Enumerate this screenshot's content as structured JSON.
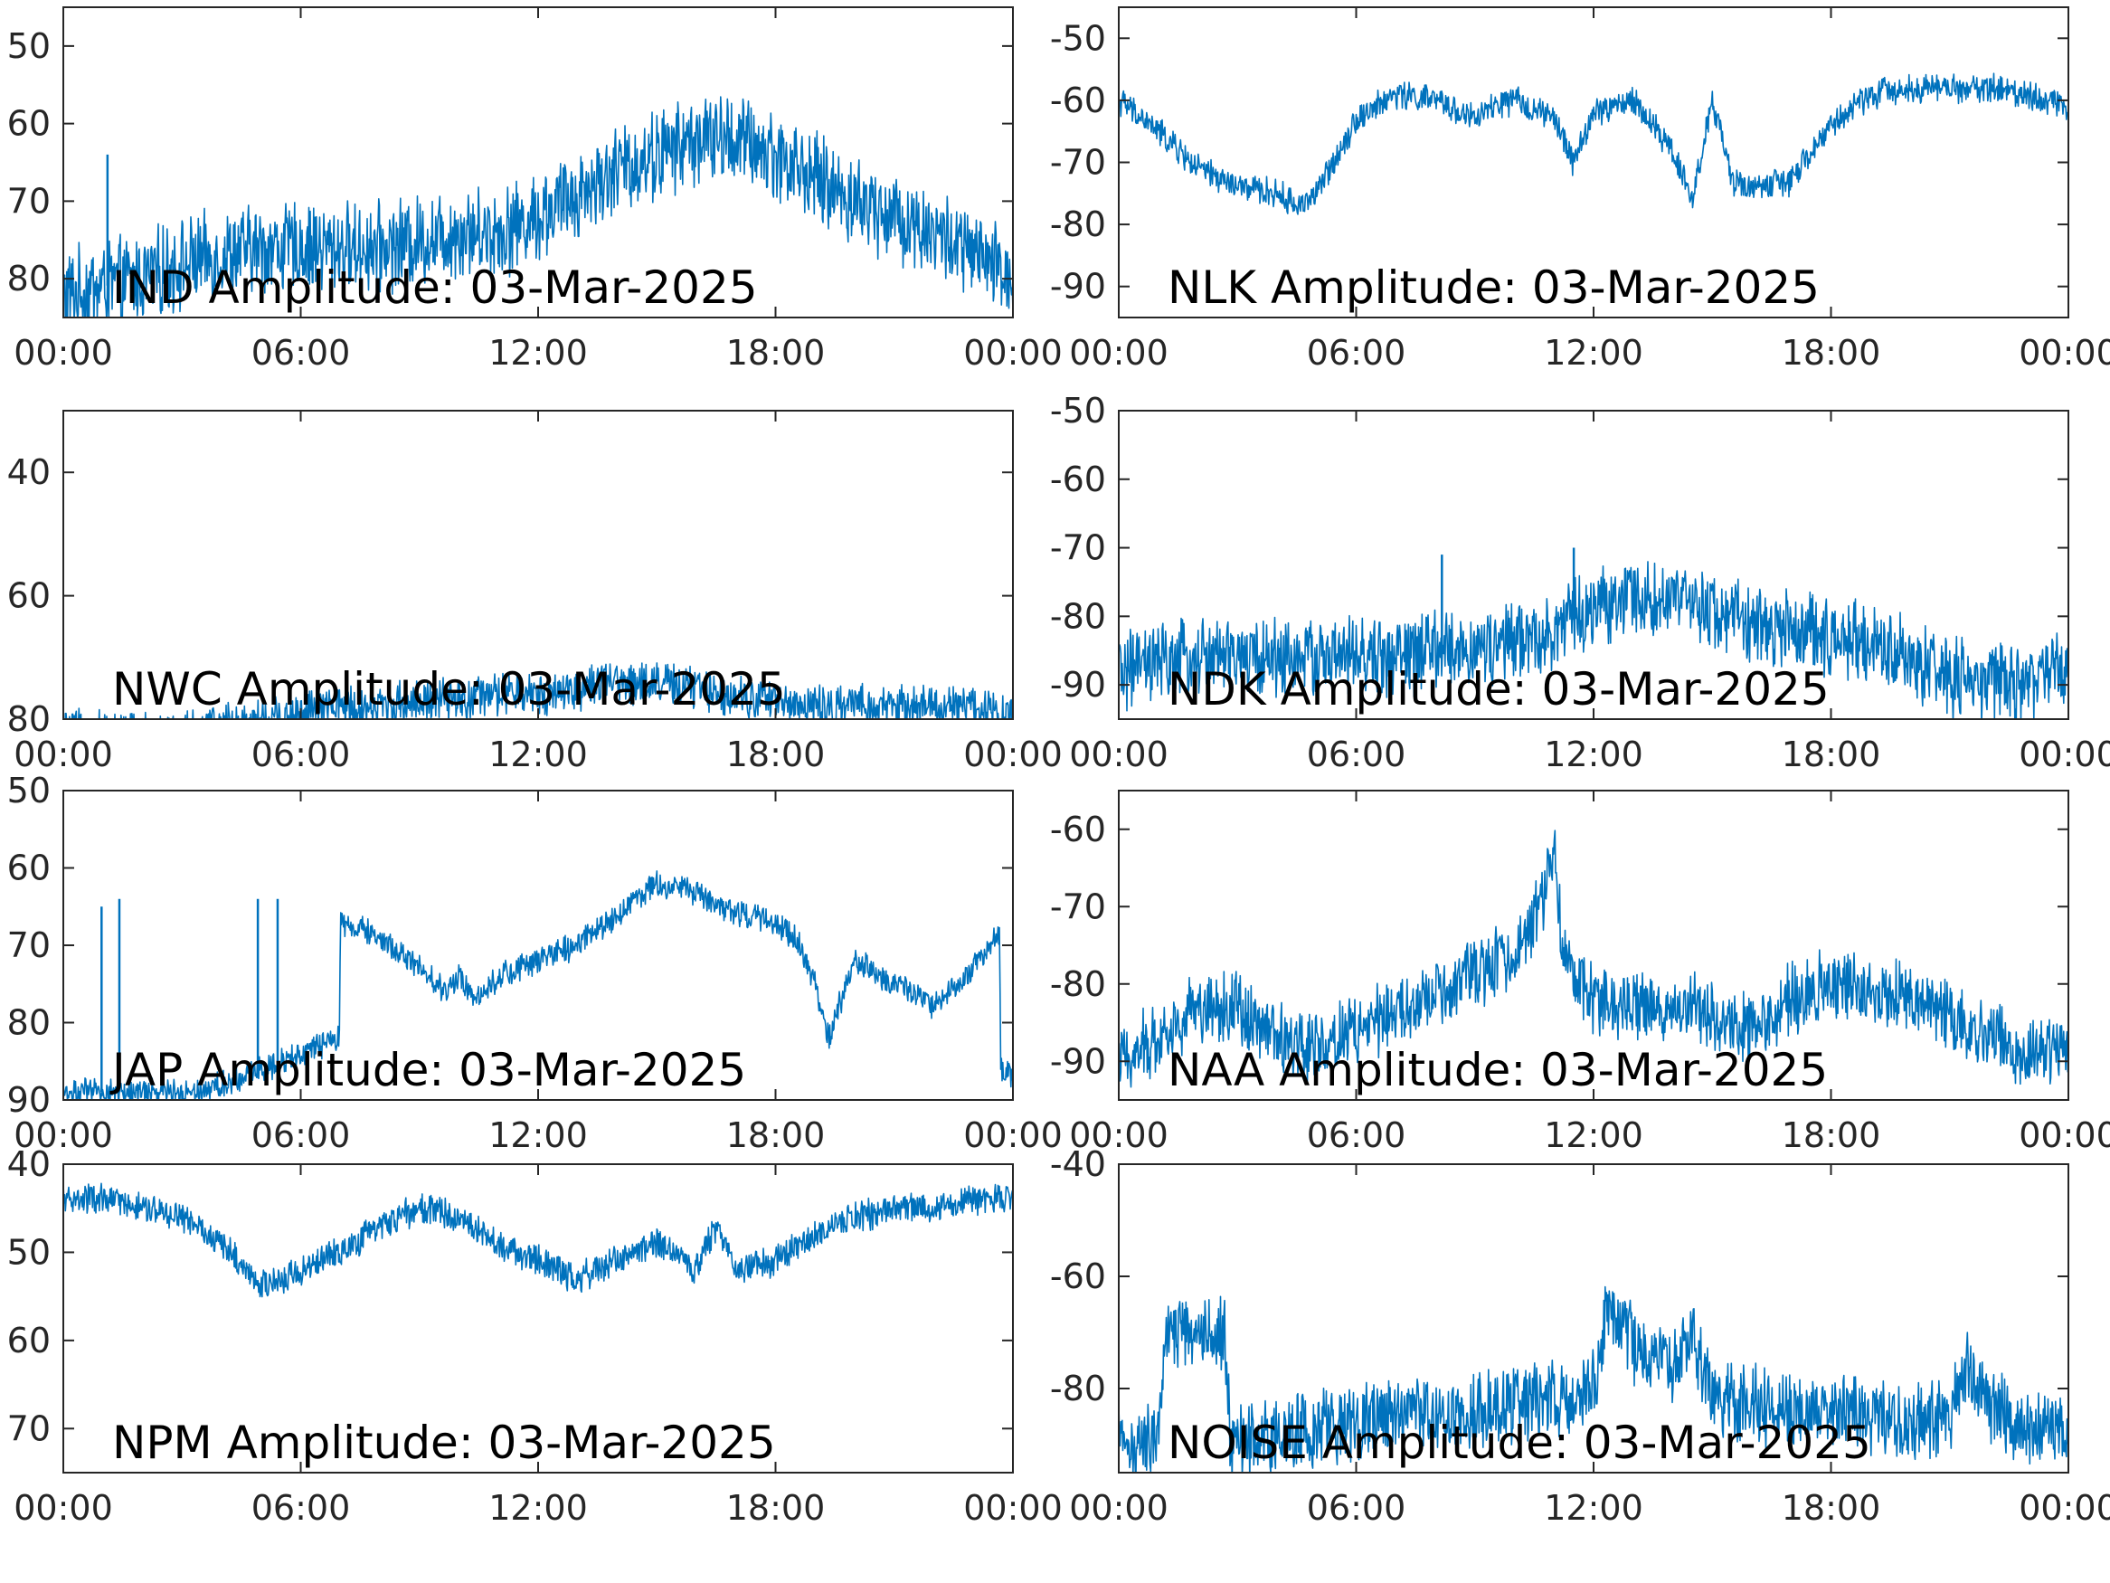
{
  "style": {
    "series_color": "#0072BD",
    "axis_color": "#262626"
  },
  "chart_data": [
    {
      "type": "line",
      "title": "IND Amplitude: 03-Mar-2025",
      "x_ticks": [
        "00:00",
        "06:00",
        "12:00",
        "18:00",
        "00:00"
      ],
      "y_ticks": [
        -50,
        -60,
        -70,
        -80
      ],
      "y_tick_labels": [
        "50",
        "60",
        "70",
        "80"
      ],
      "ylim": [
        -85,
        -45
      ],
      "xlim": [
        "00:00",
        "24:00"
      ],
      "series": [
        {
          "x": [
            "00:00",
            "01:00",
            "02:00",
            "03:00",
            "04:00",
            "05:00",
            "06:00",
            "07:00",
            "08:00",
            "09:00",
            "10:00",
            "11:00",
            "12:00",
            "13:00",
            "14:00",
            "15:00",
            "16:00",
            "17:00",
            "18:00",
            "19:00",
            "20:00",
            "21:00",
            "22:00",
            "23:00",
            "24:00"
          ],
          "values": [
            -82,
            -81,
            -80,
            -78,
            -77,
            -76,
            -76,
            -76,
            -76,
            -75,
            -74,
            -74,
            -72,
            -69,
            -66,
            -64,
            -62,
            -62,
            -64,
            -67,
            -70,
            -72,
            -74,
            -77,
            -80
          ],
          "noise_band": 5,
          "spikes": [
            {
              "x": "01:07",
              "value": -64
            }
          ]
        }
      ]
    },
    {
      "type": "line",
      "title": "NLK Amplitude: 03-Mar-2025",
      "x_ticks": [
        "00:00",
        "06:00",
        "12:00",
        "18:00",
        "00:00"
      ],
      "y_ticks": [
        -50,
        -60,
        -70,
        -80,
        -90
      ],
      "y_tick_labels": [
        "-50",
        "-60",
        "-70",
        "-80",
        "-90"
      ],
      "ylim": [
        -95,
        -45
      ],
      "xlim": [
        "00:00",
        "24:00"
      ],
      "series": [
        {
          "x": [
            "00:00",
            "01:00",
            "02:00",
            "03:00",
            "04:00",
            "04:30",
            "05:00",
            "06:00",
            "07:00",
            "08:00",
            "09:00",
            "09:30",
            "10:00",
            "11:00",
            "11:30",
            "12:00",
            "13:00",
            "14:00",
            "14:30",
            "15:00",
            "15:30",
            "16:00",
            "17:00",
            "18:00",
            "19:00",
            "20:00",
            "21:00",
            "22:00",
            "23:00",
            "24:00"
          ],
          "values": [
            -60,
            -65,
            -71,
            -74,
            -75,
            -77,
            -75,
            -63,
            -59,
            -60,
            -63,
            -61,
            -60,
            -63,
            -70,
            -62,
            -60,
            -68,
            -76,
            -60,
            -73,
            -74,
            -73,
            -64,
            -59,
            -58,
            -58,
            -58,
            -59,
            -61
          ],
          "noise_band": 2
        }
      ]
    },
    {
      "type": "line",
      "title": "NWC Amplitude: 03-Mar-2025",
      "x_ticks": [
        "00:00",
        "06:00",
        "12:00",
        "18:00",
        "00:00"
      ],
      "y_ticks": [
        -40,
        -60,
        -80
      ],
      "y_tick_labels": [
        "40",
        "60",
        "80"
      ],
      "ylim": [
        -80,
        -30
      ],
      "xlim": [
        "00:00",
        "24:00"
      ],
      "series": [
        {
          "x": [
            "00:00",
            "01:00",
            "02:00",
            "03:00",
            "04:00",
            "05:00",
            "06:00",
            "07:00",
            "08:00",
            "09:00",
            "10:00",
            "11:00",
            "12:00",
            "13:00",
            "14:00",
            "15:00",
            "16:00",
            "17:00",
            "18:00",
            "19:00",
            "20:00",
            "21:00",
            "22:00",
            "23:00",
            "24:00"
          ],
          "values": [
            -82,
            -82,
            -82,
            -82,
            -81,
            -80,
            -79,
            -78,
            -78,
            -77,
            -77,
            -76,
            -76,
            -75,
            -74,
            -74,
            -75,
            -76,
            -77,
            -78,
            -78,
            -78,
            -78,
            -78,
            -79
          ],
          "noise_band": 3,
          "spikes": [
            {
              "x": "11:10",
              "value": -73
            }
          ]
        }
      ]
    },
    {
      "type": "line",
      "title": "NDK Amplitude: 03-Mar-2025",
      "x_ticks": [
        "00:00",
        "06:00",
        "12:00",
        "18:00",
        "00:00"
      ],
      "y_ticks": [
        -50,
        -60,
        -70,
        -80,
        -90
      ],
      "y_tick_labels": [
        "-50",
        "-60",
        "-70",
        "-80",
        "-90"
      ],
      "ylim": [
        -95,
        -50
      ],
      "xlim": [
        "00:00",
        "24:00"
      ],
      "series": [
        {
          "x": [
            "00:00",
            "01:00",
            "02:00",
            "03:00",
            "04:00",
            "05:00",
            "06:00",
            "07:00",
            "08:00",
            "09:00",
            "10:00",
            "11:00",
            "12:00",
            "13:00",
            "14:00",
            "15:00",
            "16:00",
            "17:00",
            "18:00",
            "19:00",
            "20:00",
            "21:00",
            "22:00",
            "23:00",
            "24:00"
          ],
          "values": [
            -88,
            -87,
            -86,
            -86,
            -86,
            -86,
            -86,
            -86,
            -85,
            -85,
            -84,
            -82,
            -79,
            -77,
            -78,
            -79,
            -81,
            -82,
            -83,
            -84,
            -86,
            -89,
            -90,
            -89,
            -88
          ],
          "noise_band": 5,
          "spikes": [
            {
              "x": "08:10",
              "value": -71
            },
            {
              "x": "11:30",
              "value": -70
            }
          ]
        }
      ]
    },
    {
      "type": "line",
      "title": "JAP Amplitude: 03-Mar-2025",
      "x_ticks": [
        "00:00",
        "06:00",
        "12:00",
        "18:00",
        "00:00"
      ],
      "y_ticks": [
        -50,
        -60,
        -70,
        -80,
        -90
      ],
      "y_tick_labels": [
        "50",
        "60",
        "70",
        "80",
        "90"
      ],
      "ylim": [
        -90,
        -50
      ],
      "xlim": [
        "00:00",
        "24:00"
      ],
      "series": [
        {
          "x": [
            "00:00",
            "01:00",
            "02:00",
            "03:00",
            "04:00",
            "05:00",
            "06:00",
            "06:59",
            "07:00",
            "08:00",
            "09:00",
            "09:40",
            "10:00",
            "10:30",
            "11:00",
            "12:00",
            "13:00",
            "14:00",
            "15:00",
            "16:00",
            "17:00",
            "18:00",
            "18:30",
            "19:00",
            "19:20",
            "20:00",
            "21:00",
            "22:00",
            "23:00",
            "23:40",
            "23:41",
            "24:00"
          ],
          "values": [
            -89,
            -89,
            -89,
            -89,
            -88,
            -86,
            -84,
            -82,
            -67,
            -69,
            -73,
            -76,
            -74,
            -77,
            -74,
            -72,
            -70,
            -66,
            -62,
            -63,
            -66,
            -67,
            -69,
            -75,
            -82,
            -72,
            -75,
            -78,
            -73,
            -68,
            -86,
            -87
          ],
          "noise_band": 1.5,
          "spikes": [
            {
              "x": "00:58",
              "value": -65
            },
            {
              "x": "01:25",
              "value": -64
            },
            {
              "x": "04:55",
              "value": -64
            },
            {
              "x": "05:25",
              "value": -64
            }
          ]
        }
      ]
    },
    {
      "type": "line",
      "title": "NAA Amplitude: 03-Mar-2025",
      "x_ticks": [
        "00:00",
        "06:00",
        "12:00",
        "18:00",
        "00:00"
      ],
      "y_ticks": [
        -60,
        -70,
        -80,
        -90
      ],
      "y_tick_labels": [
        "-60",
        "-70",
        "-80",
        "-90"
      ],
      "ylim": [
        -95,
        -55
      ],
      "xlim": [
        "00:00",
        "24:00"
      ],
      "series": [
        {
          "x": [
            "00:00",
            "01:00",
            "02:00",
            "03:00",
            "04:00",
            "05:00",
            "06:00",
            "07:00",
            "08:00",
            "09:00",
            "10:00",
            "10:40",
            "11:00",
            "11:15",
            "12:00",
            "13:00",
            "14:00",
            "15:00",
            "16:00",
            "17:00",
            "18:00",
            "19:00",
            "20:00",
            "21:00",
            "22:00",
            "23:00",
            "24:00"
          ],
          "values": [
            -90,
            -87,
            -83,
            -83,
            -87,
            -88,
            -86,
            -84,
            -82,
            -79,
            -76,
            -70,
            -62,
            -77,
            -82,
            -83,
            -83,
            -84,
            -86,
            -82,
            -80,
            -81,
            -82,
            -84,
            -87,
            -89,
            -88
          ],
          "noise_band": 4
        }
      ]
    },
    {
      "type": "line",
      "title": "NPM Amplitude: 03-Mar-2025",
      "x_ticks": [
        "00:00",
        "06:00",
        "12:00",
        "18:00",
        "00:00"
      ],
      "y_ticks": [
        -40,
        -50,
        -60,
        -70
      ],
      "y_tick_labels": [
        "40",
        "50",
        "60",
        "70"
      ],
      "ylim": [
        -75,
        -40
      ],
      "xlim": [
        "00:00",
        "24:00"
      ],
      "series": [
        {
          "x": [
            "00:00",
            "01:00",
            "02:00",
            "03:00",
            "04:00",
            "05:00",
            "06:00",
            "07:00",
            "08:00",
            "09:00",
            "10:00",
            "11:00",
            "12:00",
            "13:00",
            "14:00",
            "15:00",
            "16:00",
            "16:30",
            "17:00",
            "18:00",
            "19:00",
            "20:00",
            "21:00",
            "22:00",
            "23:00",
            "24:00"
          ],
          "values": [
            -44,
            -44,
            -45,
            -46,
            -49,
            -54,
            -52,
            -50,
            -47,
            -45,
            -46,
            -49,
            -51,
            -53,
            -51,
            -49,
            -52,
            -47,
            -52,
            -51,
            -48,
            -46,
            -45,
            -45,
            -44,
            -44
          ],
          "noise_band": 1.5
        }
      ]
    },
    {
      "type": "line",
      "title": "NOISE Amplitude: 03-Mar-2025",
      "x_ticks": [
        "00:00",
        "06:00",
        "12:00",
        "18:00",
        "00:00"
      ],
      "y_ticks": [
        -40,
        -60,
        -80
      ],
      "y_tick_labels": [
        "-40",
        "-60",
        "-80"
      ],
      "ylim": [
        -95,
        -40
      ],
      "xlim": [
        "00:00",
        "24:00"
      ],
      "series": [
        {
          "x": [
            "00:00",
            "01:00",
            "01:10",
            "02:40",
            "02:50",
            "04:00",
            "05:00",
            "06:00",
            "07:00",
            "08:00",
            "09:00",
            "10:00",
            "11:00",
            "12:00",
            "12:20",
            "13:00",
            "14:00",
            "14:30",
            "15:00",
            "16:00",
            "17:00",
            "18:00",
            "19:00",
            "20:00",
            "21:00",
            "21:30",
            "22:00",
            "23:00",
            "24:00"
          ],
          "values": [
            -90,
            -90,
            -70,
            -70,
            -90,
            -88,
            -87,
            -86,
            -85,
            -84,
            -84,
            -83,
            -82,
            -80,
            -66,
            -72,
            -76,
            -71,
            -82,
            -83,
            -84,
            -85,
            -85,
            -86,
            -85,
            -76,
            -84,
            -87,
            -87
          ],
          "noise_band": 6
        }
      ]
    }
  ]
}
